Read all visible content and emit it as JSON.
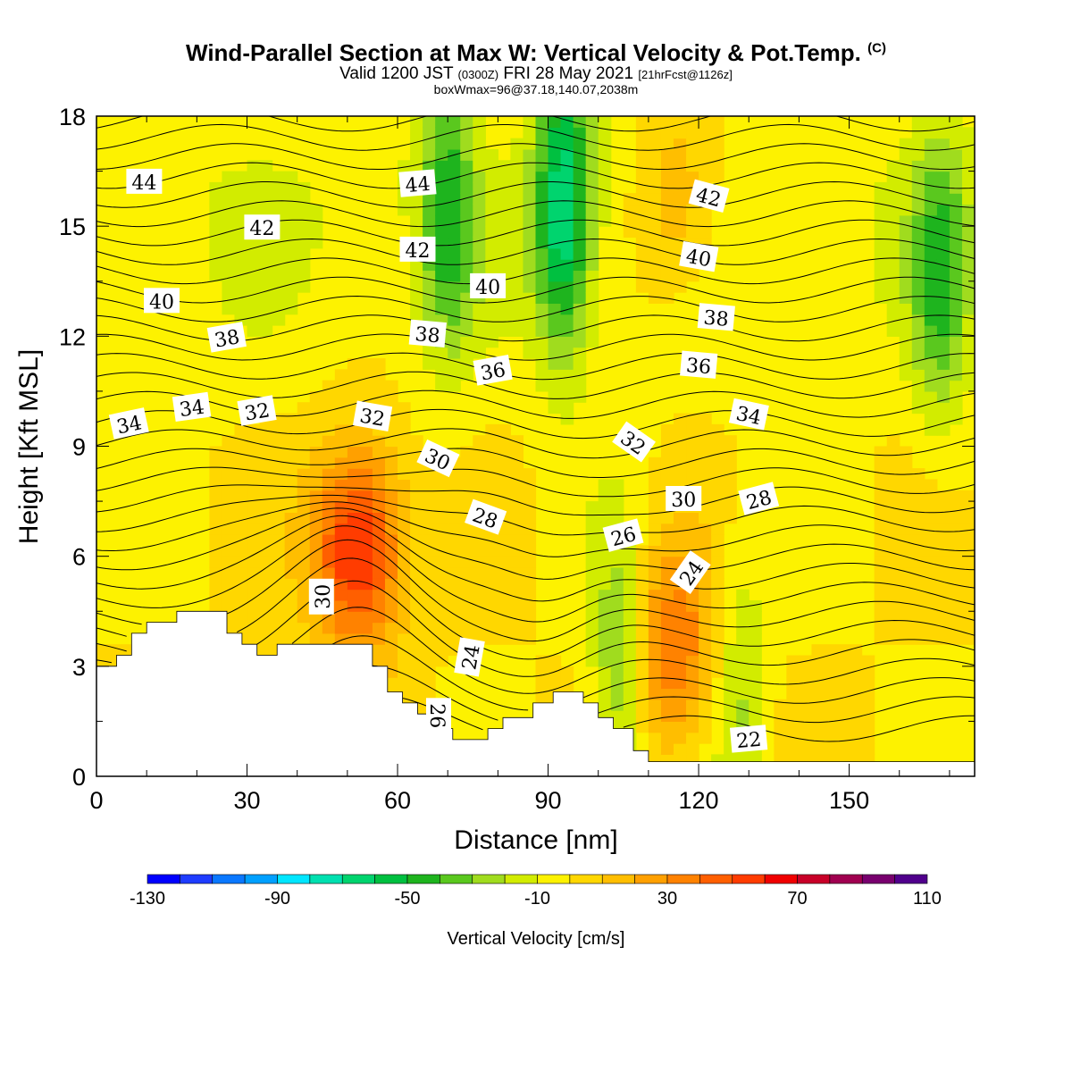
{
  "header": {
    "title": "Wind-Parallel Section at Max W: Vertical Velocity & Pot.Temp.",
    "copyright": "(C)",
    "valid_prefix": "Valid 1200 JST",
    "valid_utc": "(0300Z)",
    "valid_date": "FRI 28 May 2021",
    "forecast": "[21hrFcst@1126z]",
    "box_info": "boxWmax=96@37.18,140.07,2038m"
  },
  "colors": {
    "plot_bg": "#fdf200",
    "terrain": "#ffffff",
    "contour": "#000000",
    "palette": [
      "#0000ff",
      "#1e3cff",
      "#0a78ff",
      "#00a0ff",
      "#00e6ff",
      "#00e0b0",
      "#00d46e",
      "#00c040",
      "#1eb41e",
      "#5ac81e",
      "#a0dc1e",
      "#d2ec00",
      "#fdf200",
      "#ffd700",
      "#ffbe00",
      "#ffa000",
      "#ff8200",
      "#ff5f00",
      "#ff3c00",
      "#f00000",
      "#c80028",
      "#a00050",
      "#78006e",
      "#50008c"
    ]
  },
  "chart_data": {
    "type": "heatmap",
    "xlabel": "Distance [nm]",
    "ylabel": "Height [Kft MSL]",
    "xlim": [
      0,
      175
    ],
    "ylim": [
      0,
      18
    ],
    "xticks": [
      0,
      30,
      60,
      90,
      120,
      150
    ],
    "yticks": [
      0,
      3,
      6,
      9,
      12,
      15,
      18
    ],
    "colorbar": {
      "label": "Vertical Velocity [cm/s]",
      "min": -130,
      "max": 110,
      "step": 10,
      "ticks": [
        -130,
        -90,
        -50,
        -10,
        30,
        70,
        110
      ]
    },
    "terrain": [
      [
        0,
        3.0
      ],
      [
        4,
        3.0
      ],
      [
        4,
        3.3
      ],
      [
        7,
        3.3
      ],
      [
        7,
        3.9
      ],
      [
        10,
        3.9
      ],
      [
        10,
        4.2
      ],
      [
        16,
        4.2
      ],
      [
        16,
        4.5
      ],
      [
        26,
        4.5
      ],
      [
        26,
        3.9
      ],
      [
        29,
        3.9
      ],
      [
        29,
        3.6
      ],
      [
        32,
        3.6
      ],
      [
        32,
        3.3
      ],
      [
        36,
        3.3
      ],
      [
        36,
        3.6
      ],
      [
        55,
        3.6
      ],
      [
        55,
        3.0
      ],
      [
        58,
        3.0
      ],
      [
        58,
        2.3
      ],
      [
        61,
        2.3
      ],
      [
        61,
        2.0
      ],
      [
        64,
        2.0
      ],
      [
        64,
        1.7
      ],
      [
        67,
        1.7
      ],
      [
        67,
        1.3
      ],
      [
        71,
        1.3
      ],
      [
        71,
        1.0
      ],
      [
        78,
        1.0
      ],
      [
        78,
        1.3
      ],
      [
        81,
        1.3
      ],
      [
        81,
        1.6
      ],
      [
        87,
        1.6
      ],
      [
        87,
        2.0
      ],
      [
        91,
        2.0
      ],
      [
        91,
        2.3
      ],
      [
        97,
        2.3
      ],
      [
        97,
        2.0
      ],
      [
        100,
        2.0
      ],
      [
        100,
        1.6
      ],
      [
        103,
        1.6
      ],
      [
        103,
        1.3
      ],
      [
        107,
        1.3
      ],
      [
        107,
        0.7
      ],
      [
        110,
        0.7
      ],
      [
        110,
        0.4
      ],
      [
        175,
        0.4
      ]
    ],
    "velocity_features": [
      {
        "kind": "updraft",
        "x": 52,
        "y": 6.2,
        "peak": 64
      },
      {
        "kind": "updraft",
        "x": 115,
        "y": 3.5,
        "peak": 38
      },
      {
        "kind": "updraft",
        "x": 116,
        "y": 15.5,
        "peak": 26
      },
      {
        "kind": "downdraft",
        "x": 93,
        "y": 15.5,
        "peak": -62
      },
      {
        "kind": "downdraft",
        "x": 104,
        "y": 3.0,
        "peak": -32
      },
      {
        "kind": "downdraft",
        "x": 128,
        "y": 2.5,
        "peak": -22
      },
      {
        "kind": "downdraft",
        "x": 168,
        "y": 13.5,
        "peak": -35
      },
      {
        "kind": "downdraft",
        "x": 70,
        "y": 15.5,
        "peak": -38
      }
    ],
    "contour_labels": [
      {
        "text": "44",
        "x": 9.5,
        "y": 16.2,
        "angle": 0
      },
      {
        "text": "44",
        "x": 64,
        "y": 16.15,
        "angle": -5
      },
      {
        "text": "42",
        "x": 33,
        "y": 14.95,
        "angle": 0
      },
      {
        "text": "42",
        "x": 64,
        "y": 14.35,
        "angle": 0
      },
      {
        "text": "42",
        "x": 122,
        "y": 15.8,
        "angle": 15
      },
      {
        "text": "40",
        "x": 13,
        "y": 12.95,
        "angle": 0
      },
      {
        "text": "40",
        "x": 78,
        "y": 13.35,
        "angle": 0
      },
      {
        "text": "40",
        "x": 120,
        "y": 14.15,
        "angle": 10
      },
      {
        "text": "38",
        "x": 26,
        "y": 11.95,
        "angle": -10
      },
      {
        "text": "38",
        "x": 66,
        "y": 12.05,
        "angle": 5
      },
      {
        "text": "38",
        "x": 123.5,
        "y": 12.5,
        "angle": 5
      },
      {
        "text": "36",
        "x": 79,
        "y": 11.05,
        "angle": -10
      },
      {
        "text": "36",
        "x": 120,
        "y": 11.2,
        "angle": 5
      },
      {
        "text": "34",
        "x": 6.5,
        "y": 9.6,
        "angle": -12
      },
      {
        "text": "34",
        "x": 19,
        "y": 10.05,
        "angle": -8
      },
      {
        "text": "34",
        "x": 130,
        "y": 9.85,
        "angle": 12
      },
      {
        "text": "32",
        "x": 32,
        "y": 9.95,
        "angle": -10
      },
      {
        "text": "32",
        "x": 55,
        "y": 9.8,
        "angle": 10
      },
      {
        "text": "32",
        "x": 107,
        "y": 9.1,
        "angle": 35
      },
      {
        "text": "30",
        "x": 68,
        "y": 8.65,
        "angle": 25
      },
      {
        "text": "30",
        "x": 117,
        "y": 7.55,
        "angle": 0
      },
      {
        "text": "30",
        "x": 45,
        "y": 4.9,
        "angle": -90
      },
      {
        "text": "28",
        "x": 77.5,
        "y": 7.05,
        "angle": 20
      },
      {
        "text": "28",
        "x": 132,
        "y": 7.55,
        "angle": -15
      },
      {
        "text": "26",
        "x": 105,
        "y": 6.55,
        "angle": -15
      },
      {
        "text": "26",
        "x": 68,
        "y": 1.65,
        "angle": 90
      },
      {
        "text": "24",
        "x": 118.5,
        "y": 5.55,
        "angle": -55
      },
      {
        "text": "24",
        "x": 74.5,
        "y": 3.25,
        "angle": -80
      },
      {
        "text": "22",
        "x": 130,
        "y": 1.0,
        "angle": -5
      }
    ]
  }
}
